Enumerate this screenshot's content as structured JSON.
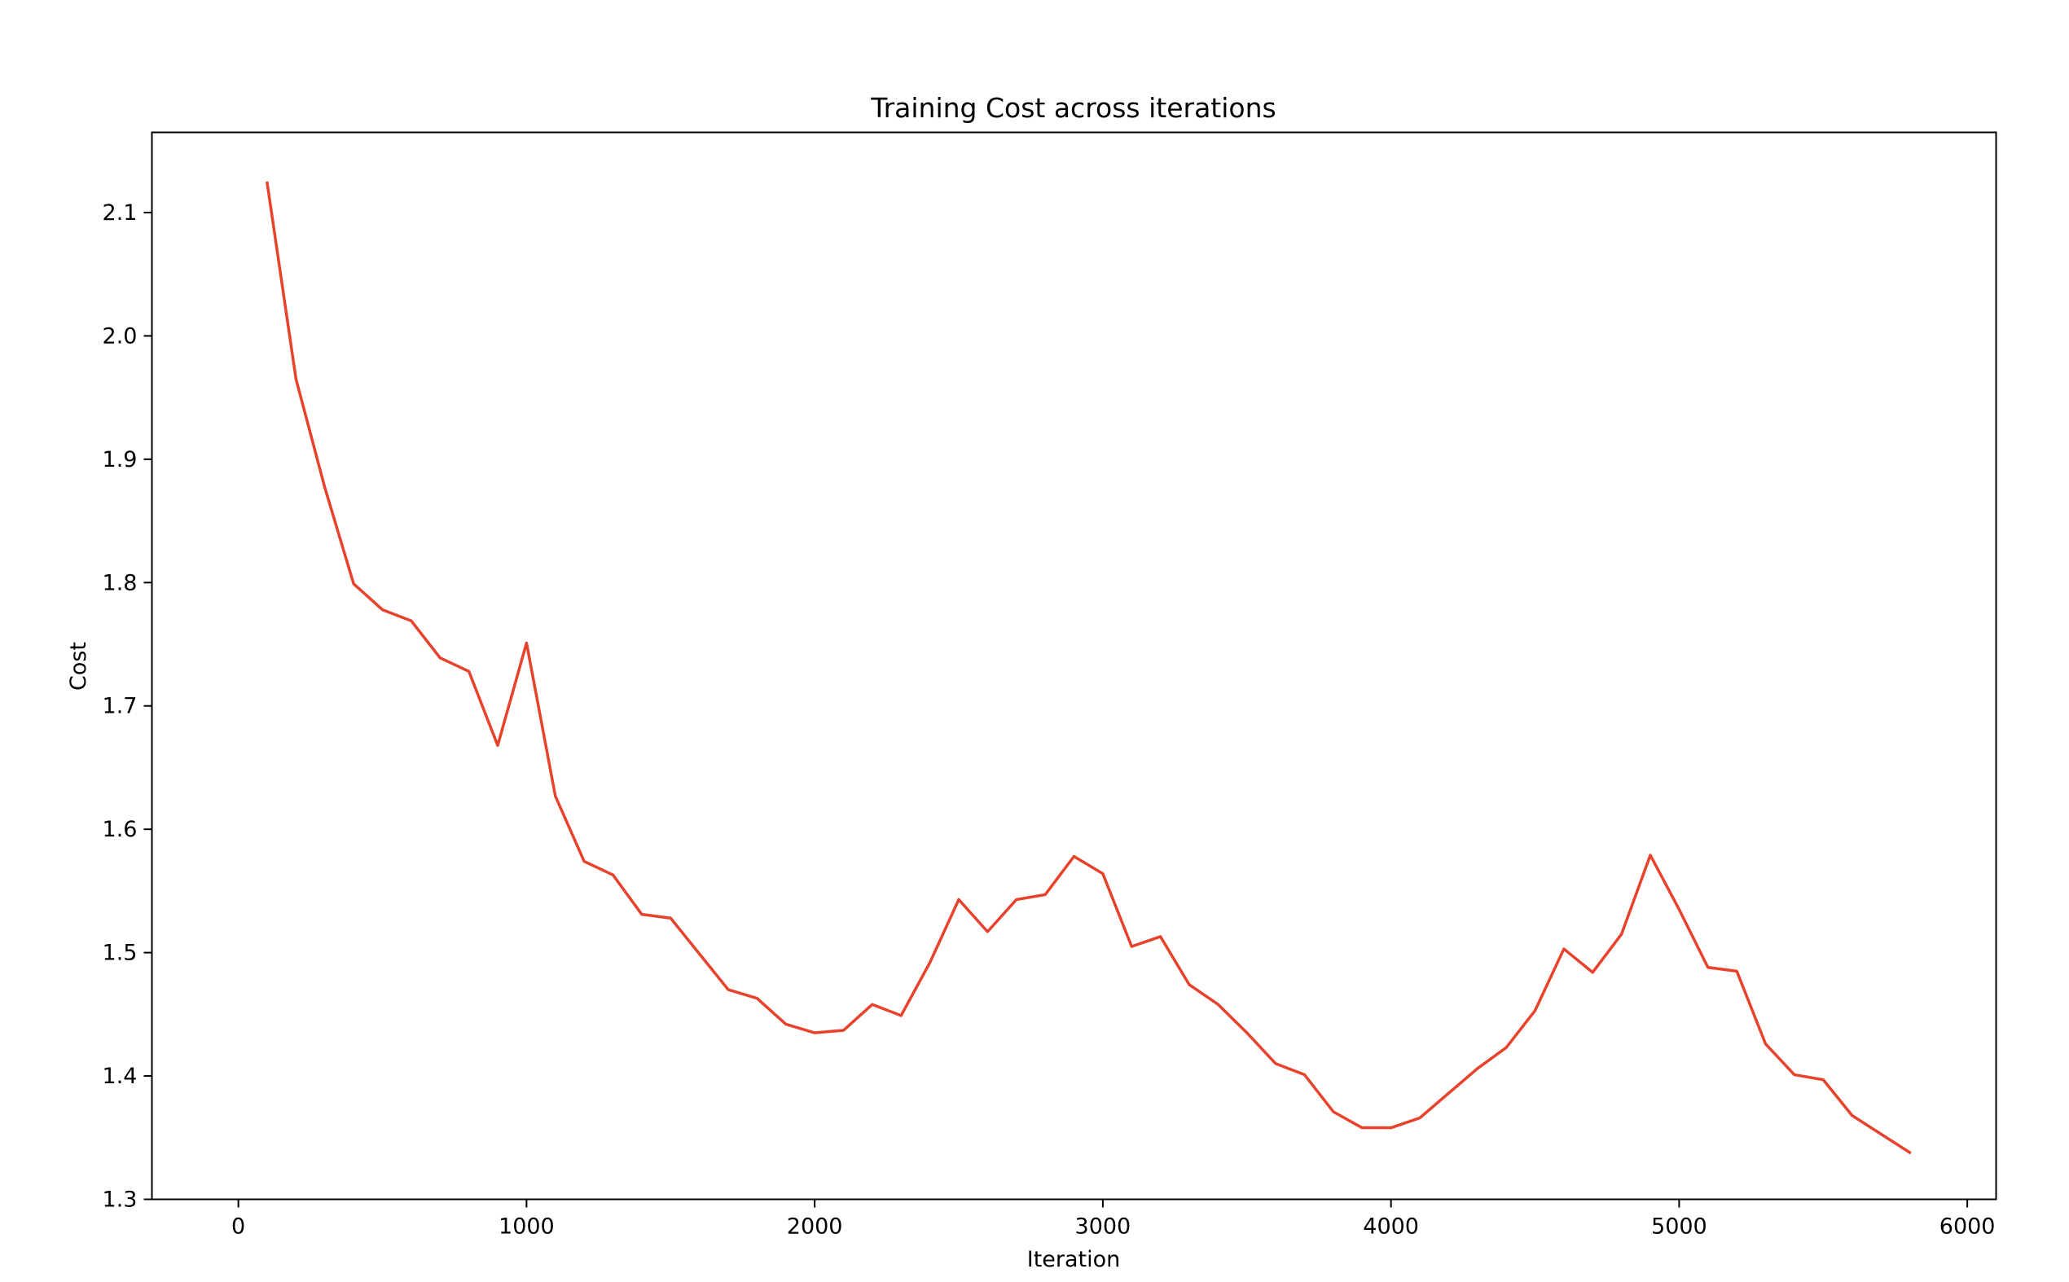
{
  "chart_data": {
    "type": "line",
    "title": "Training Cost across iterations",
    "xlabel": "Iteration",
    "ylabel": "Cost",
    "xlim": [
      -300,
      6100
    ],
    "ylim": [
      1.3,
      2.165
    ],
    "grid": false,
    "xticks": [
      0,
      1000,
      2000,
      3000,
      4000,
      5000,
      6000
    ],
    "xtick_labels": [
      "0",
      "1000",
      "2000",
      "3000",
      "4000",
      "5000",
      "6000"
    ],
    "yticks": [
      1.3,
      1.4,
      1.5,
      1.6,
      1.7,
      1.8,
      1.9,
      2.0,
      2.1
    ],
    "ytick_labels": [
      "1.3",
      "1.4",
      "1.5",
      "1.6",
      "1.7",
      "1.8",
      "1.9",
      "2.0",
      "2.1"
    ],
    "colors": {
      "line": "#e8412c",
      "axes": "#000000"
    },
    "series": [
      {
        "x": [
          100,
          200,
          300,
          400,
          500,
          600,
          700,
          800,
          900,
          1000,
          1100,
          1200,
          1300,
          1400,
          1500,
          1600,
          1700,
          1800,
          1900,
          2000,
          2100,
          2200,
          2300,
          2400,
          2500,
          2600,
          2700,
          2800,
          2900,
          3000,
          3100,
          3200,
          3300,
          3400,
          3500,
          3600,
          3700,
          3800,
          3900,
          4000,
          4100,
          4200,
          4300,
          4400,
          4500,
          4600,
          4700,
          4800,
          4900,
          5000,
          5100,
          5200,
          5300,
          5400,
          5500,
          5600,
          5700,
          5800
        ],
        "values": [
          2.124,
          1.965,
          1.877,
          1.799,
          1.778,
          1.769,
          1.739,
          1.728,
          1.668,
          1.751,
          1.627,
          1.574,
          1.563,
          1.531,
          1.528,
          1.499,
          1.47,
          1.463,
          1.442,
          1.435,
          1.437,
          1.458,
          1.449,
          1.492,
          1.543,
          1.517,
          1.543,
          1.547,
          1.578,
          1.564,
          1.505,
          1.513,
          1.474,
          1.458,
          1.435,
          1.41,
          1.401,
          1.371,
          1.358,
          1.358,
          1.366,
          1.386,
          1.406,
          1.423,
          1.453,
          1.503,
          1.484,
          1.515,
          1.579,
          1.535,
          1.488,
          1.485,
          1.426,
          1.401,
          1.397,
          1.368,
          1.353,
          1.338
        ]
      }
    ]
  }
}
